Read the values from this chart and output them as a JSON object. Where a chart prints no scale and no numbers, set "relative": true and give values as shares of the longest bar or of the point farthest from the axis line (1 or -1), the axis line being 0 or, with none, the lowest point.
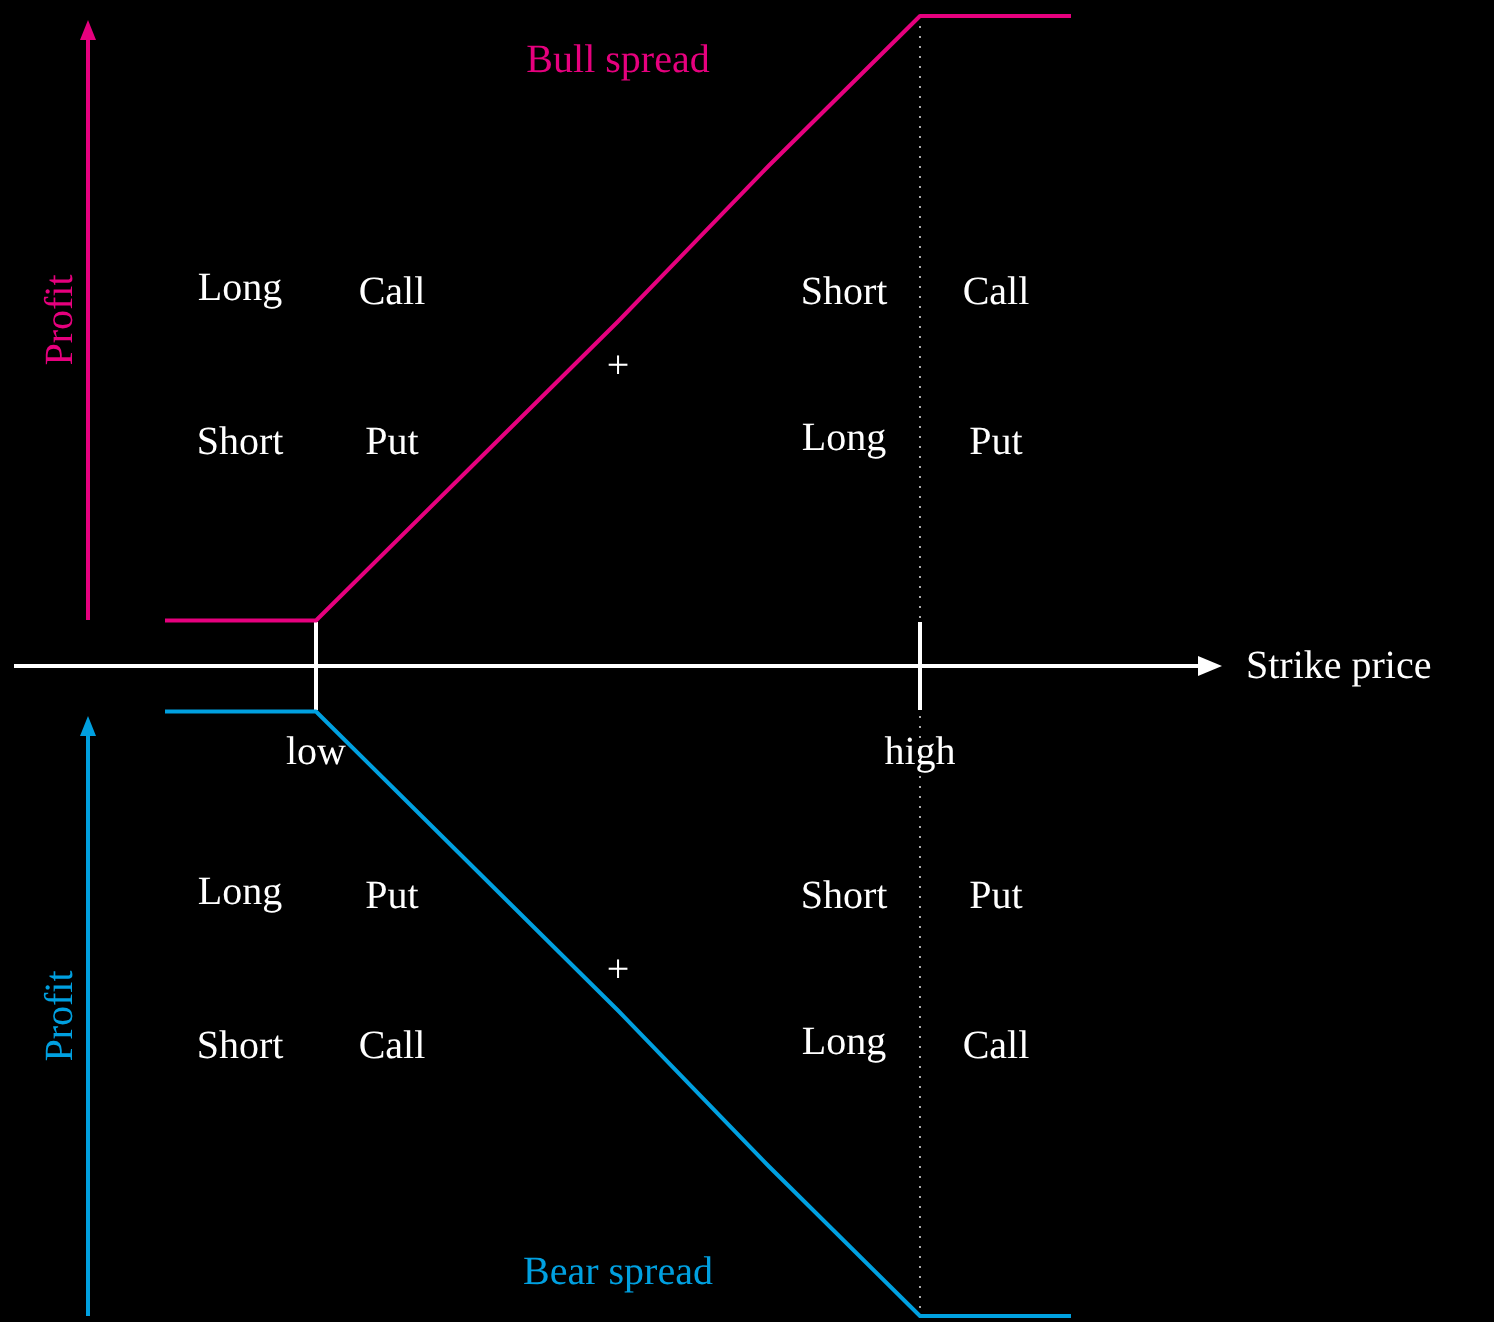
{
  "chart_data": {
    "type": "line",
    "relative": true,
    "xlabel": "Strike price",
    "ylabel": "Profit",
    "categories": [
      null,
      "low",
      null,
      null,
      null,
      "high",
      null
    ],
    "series": [
      {
        "name": "Bull spread",
        "color": "#e6007e",
        "values": [
          0.07,
          0.07,
          0.3,
          0.53,
          0.77,
          1,
          1
        ]
      },
      {
        "name": "Bear spread",
        "color": "#00a0e0",
        "values": [
          -0.07,
          -0.07,
          -0.3,
          -0.53,
          -0.77,
          -1,
          -1
        ]
      }
    ],
    "ref_lines": [
      {
        "axis": "x",
        "value": "high",
        "label": null,
        "color": "#aaaaaa",
        "line_style": "dotted"
      }
    ],
    "annotations": [
      "Long",
      "Call",
      "Short",
      "Put",
      "+",
      "Short",
      "Call",
      "Long",
      "Put",
      "Long",
      "Put",
      "Short",
      "Call",
      "+",
      "Short",
      "Put",
      "Long",
      "Call"
    ],
    "marker": "none",
    "line_style": "solid"
  }
}
